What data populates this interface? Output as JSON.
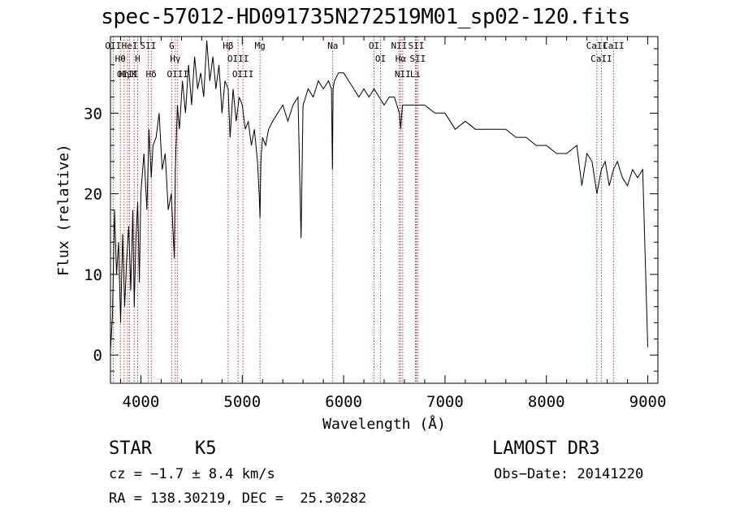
{
  "chart_data": {
    "type": "line",
    "title": "spec-57012-HD091735N272519M01_sp02-120.fits",
    "xlabel": "Wavelength (Å)",
    "ylabel": "Flux (relative)",
    "xlim": [
      3700,
      9100
    ],
    "ylim": [
      -3.5,
      39.5
    ],
    "xticks": [
      4000,
      5000,
      6000,
      7000,
      8000,
      9000
    ],
    "yticks": [
      0,
      10,
      20,
      30
    ],
    "grid": false,
    "series": [
      {
        "x": [
          3700,
          3720,
          3740,
          3760,
          3780,
          3800,
          3820,
          3840,
          3860,
          3880,
          3900,
          3920,
          3935,
          3950,
          3968,
          3985,
          4000,
          4030,
          4060,
          4080,
          4102,
          4120,
          4150,
          4180,
          4210,
          4240,
          4270,
          4300,
          4330,
          4340,
          4360,
          4380,
          4410,
          4440,
          4470,
          4500,
          4530,
          4560,
          4590,
          4620,
          4650,
          4680,
          4710,
          4740,
          4770,
          4800,
          4830,
          4861,
          4880,
          4910,
          4940,
          4970,
          5000,
          5030,
          5060,
          5090,
          5120,
          5150,
          5167,
          5175,
          5184,
          5200,
          5230,
          5260,
          5300,
          5350,
          5400,
          5450,
          5500,
          5550,
          5580,
          5600,
          5650,
          5700,
          5750,
          5800,
          5850,
          5880,
          5890,
          5896,
          5910,
          5950,
          6000,
          6050,
          6100,
          6150,
          6200,
          6250,
          6300,
          6350,
          6400,
          6450,
          6500,
          6550,
          6563,
          6580,
          6620,
          6700,
          6800,
          6900,
          7000,
          7100,
          7200,
          7300,
          7400,
          7500,
          7600,
          7700,
          7800,
          7900,
          8000,
          8100,
          8200,
          8300,
          8350,
          8400,
          8450,
          8498,
          8542,
          8580,
          8620,
          8662,
          8700,
          8750,
          8800,
          8850,
          8900,
          8950,
          9000
        ],
        "y": [
          0.5,
          5,
          18,
          10,
          14,
          4,
          15,
          6,
          12,
          16,
          8,
          18,
          6,
          14,
          19,
          9,
          20,
          25,
          18,
          28,
          22,
          26,
          27,
          30,
          23,
          25,
          18,
          20,
          12,
          23,
          31,
          28,
          34,
          30,
          36,
          31,
          37,
          33,
          35,
          32,
          39,
          34,
          37,
          33,
          36,
          30,
          34,
          33,
          27,
          33,
          29,
          32,
          31,
          28,
          29,
          26,
          28,
          24,
          20,
          17,
          24,
          27,
          26,
          28,
          29,
          30,
          31,
          29,
          31,
          32,
          14.5,
          31,
          33,
          32,
          34,
          33,
          34,
          33,
          23,
          33,
          34,
          35,
          35,
          34,
          33,
          32,
          33,
          32,
          33,
          32,
          31,
          32,
          32,
          30,
          28,
          31,
          31,
          31,
          31,
          30,
          30,
          28,
          29,
          28,
          28,
          28,
          28,
          27,
          27,
          26,
          26,
          25,
          25,
          26,
          21,
          25,
          24,
          20,
          23,
          24,
          21,
          23,
          24,
          22,
          21,
          23,
          22,
          23,
          1
        ]
      }
    ],
    "line_marks": [
      {
        "x": 3727,
        "labels": [
          "OII"
        ]
      },
      {
        "x": 3798,
        "labels": [
          "Hθ"
        ]
      },
      {
        "x": 3835,
        "labels": [
          "Hη"
        ]
      },
      {
        "x": 3869,
        "labels": [
          "OIII"
        ]
      },
      {
        "x": 3889,
        "labels": [
          "HeI"
        ]
      },
      {
        "x": 3934,
        "labels": [
          "K"
        ]
      },
      {
        "x": 3968,
        "labels": [
          "H"
        ]
      },
      {
        "x": 4072,
        "labels": [
          "SII"
        ]
      },
      {
        "x": 4102,
        "labels": [
          "Hδ"
        ]
      },
      {
        "x": 4304,
        "labels": [
          "G"
        ]
      },
      {
        "x": 4340,
        "labels": [
          "Hγ"
        ]
      },
      {
        "x": 4363,
        "labels": [
          "OIII"
        ]
      },
      {
        "x": 4861,
        "labels": [
          "Hβ"
        ]
      },
      {
        "x": 4959,
        "labels": [
          "OIII"
        ]
      },
      {
        "x": 5007,
        "labels": [
          "OIII"
        ]
      },
      {
        "x": 5175,
        "labels": [
          "Mg"
        ]
      },
      {
        "x": 5893,
        "labels": [
          "Na"
        ]
      },
      {
        "x": 6300,
        "labels": [
          "OI"
        ]
      },
      {
        "x": 6364,
        "labels": [
          "OI"
        ]
      },
      {
        "x": 6548,
        "labels": [
          "NII"
        ]
      },
      {
        "x": 6563,
        "labels": [
          "Hα"
        ]
      },
      {
        "x": 6583,
        "labels": [
          "NII"
        ]
      },
      {
        "x": 6708,
        "labels": [
          "Li"
        ]
      },
      {
        "x": 6716,
        "labels": [
          "SII"
        ]
      },
      {
        "x": 6731,
        "labels": [
          "SII"
        ]
      },
      {
        "x": 8498,
        "labels": [
          "CaII"
        ]
      },
      {
        "x": 8542,
        "labels": [
          "CaII"
        ]
      },
      {
        "x": 8662,
        "labels": [
          "CaII"
        ]
      }
    ],
    "colors": {
      "spectrum": "#000000",
      "marker_lines": "#b02020",
      "axes": "#000000"
    }
  },
  "info": {
    "class_label": "STAR",
    "subclass": "K5",
    "survey": "LAMOST DR3",
    "cz": "cz = −1.7 ± 8.4 km/s",
    "obs_date": "Obs−Date: 20141220",
    "coords": "RA = 138.30219, DEC =  25.30282"
  }
}
